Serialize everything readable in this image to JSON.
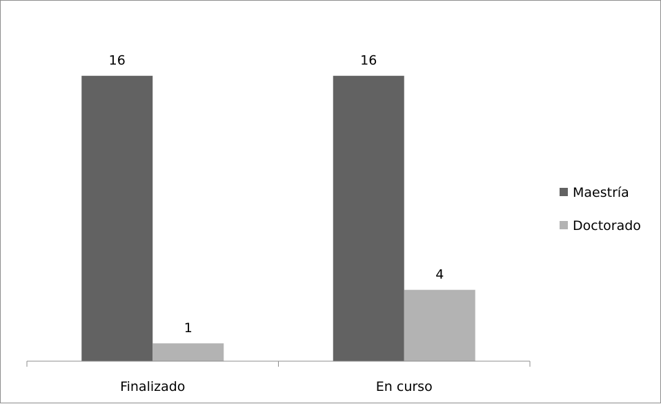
{
  "chart_data": {
    "type": "bar",
    "categories": [
      "Finalizado",
      "En curso"
    ],
    "series": [
      {
        "name": "Maestría",
        "values": [
          16,
          16
        ],
        "color": "#626262"
      },
      {
        "name": "Doctorado",
        "values": [
          1,
          4
        ],
        "color": "#b3b3b3"
      }
    ],
    "data_labels": true,
    "ylim": [
      0,
      17.5
    ],
    "y_axis_visible": false,
    "grid": false,
    "legend": "right"
  }
}
